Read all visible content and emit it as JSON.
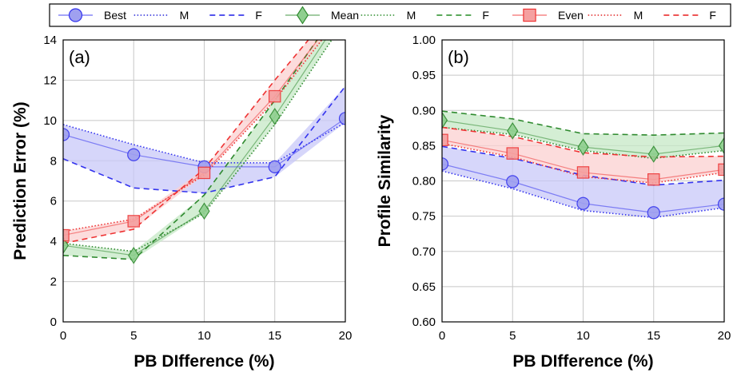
{
  "legend": [
    {
      "label": "Best",
      "kind": "marker",
      "marker": "circle",
      "color": "#3333ee",
      "fill": "#9fa0f0"
    },
    {
      "label": "M",
      "kind": "line",
      "dash": "dotted",
      "color": "#2626d9"
    },
    {
      "label": "F",
      "kind": "line",
      "dash": "dashed",
      "color": "#1a1ae6"
    },
    {
      "label": "Mean",
      "kind": "marker",
      "marker": "diamond",
      "color": "#2f8a2f",
      "fill": "#8fcf8f"
    },
    {
      "label": "M",
      "kind": "line",
      "dash": "dotted",
      "color": "#2a8c2a"
    },
    {
      "label": "F",
      "kind": "line",
      "dash": "dashed",
      "color": "#238b23"
    },
    {
      "label": "Even",
      "kind": "marker",
      "marker": "square",
      "color": "#ee3333",
      "fill": "#f5a0a0"
    },
    {
      "label": "M",
      "kind": "line",
      "dash": "dotted",
      "color": "#e02020"
    },
    {
      "label": "F",
      "kind": "line",
      "dash": "dashed",
      "color": "#e81c1c"
    }
  ],
  "colors": {
    "best": "#3333ee",
    "best_fill": "#9fa0f0",
    "best_band": "#c8c8f8",
    "mean": "#2f8a2f",
    "mean_fill": "#8fcf8f",
    "mean_band": "#c6e8c6",
    "even": "#ee3333",
    "even_fill": "#f5a0a0",
    "even_band": "#fbd0d0",
    "grid": "#c8c8c8"
  },
  "chart_data": [
    {
      "type": "line",
      "panel_label": "(a)",
      "xlabel": "PB DIfference (%)",
      "ylabel": "Prediction Error (%)",
      "x": [
        0,
        5,
        10,
        15,
        20
      ],
      "xticks": [
        "0",
        "5",
        "10",
        "15",
        "20"
      ],
      "xlim": [
        0,
        20
      ],
      "ylim": [
        0,
        14
      ],
      "yticks": [
        "0",
        "2",
        "4",
        "6",
        "8",
        "10",
        "12",
        "14"
      ],
      "grid": true,
      "series": [
        {
          "name": "Best",
          "group": "best",
          "style": "marker",
          "values": [
            9.3,
            8.3,
            7.7,
            7.7,
            10.1
          ]
        },
        {
          "name": "M",
          "group": "best",
          "style": "dotted",
          "values": [
            9.8,
            8.8,
            7.9,
            7.9,
            9.9
          ]
        },
        {
          "name": "F",
          "group": "best",
          "style": "dashed",
          "values": [
            8.1,
            6.65,
            6.4,
            7.2,
            11.7
          ]
        },
        {
          "name": "Mean",
          "group": "mean",
          "style": "marker",
          "values": [
            3.8,
            3.3,
            5.5,
            10.2,
            15.5
          ]
        },
        {
          "name": "M",
          "group": "mean",
          "style": "dotted",
          "values": [
            3.9,
            3.5,
            5.4,
            9.8,
            15.0
          ]
        },
        {
          "name": "F",
          "group": "mean",
          "style": "dashed",
          "values": [
            3.3,
            3.1,
            6.3,
            11.0,
            16.0
          ]
        },
        {
          "name": "Even",
          "group": "even",
          "style": "marker",
          "values": [
            4.3,
            5.0,
            7.4,
            11.2,
            15.8
          ]
        },
        {
          "name": "M",
          "group": "even",
          "style": "dotted",
          "values": [
            4.5,
            5.1,
            7.3,
            11.0,
            15.5
          ]
        },
        {
          "name": "F",
          "group": "even",
          "style": "dashed",
          "values": [
            3.9,
            4.6,
            7.6,
            12.0,
            16.2
          ]
        }
      ]
    },
    {
      "type": "line",
      "panel_label": "(b)",
      "xlabel": "PB DIfference (%)",
      "ylabel": "Profile Similarity",
      "x": [
        0,
        5,
        10,
        15,
        20
      ],
      "xticks": [
        "0",
        "5",
        "10",
        "15",
        "20"
      ],
      "xlim": [
        0,
        20
      ],
      "ylim": [
        0.6,
        1.0
      ],
      "yticks": [
        "0.60",
        "0.65",
        "0.70",
        "0.75",
        "0.80",
        "0.85",
        "0.90",
        "0.95",
        "1.00"
      ],
      "grid": true,
      "series": [
        {
          "name": "Best",
          "group": "best",
          "style": "marker",
          "values": [
            0.824,
            0.799,
            0.768,
            0.755,
            0.767
          ]
        },
        {
          "name": "M",
          "group": "best",
          "style": "dotted",
          "values": [
            0.814,
            0.789,
            0.758,
            0.748,
            0.762
          ]
        },
        {
          "name": "F",
          "group": "best",
          "style": "dashed",
          "values": [
            0.849,
            0.832,
            0.808,
            0.794,
            0.801
          ]
        },
        {
          "name": "Mean",
          "group": "mean",
          "style": "marker",
          "values": [
            0.886,
            0.871,
            0.848,
            0.838,
            0.85
          ]
        },
        {
          "name": "M",
          "group": "mean",
          "style": "dotted",
          "values": [
            0.876,
            0.866,
            0.843,
            0.832,
            0.843
          ]
        },
        {
          "name": "F",
          "group": "mean",
          "style": "dashed",
          "values": [
            0.899,
            0.888,
            0.867,
            0.865,
            0.868
          ]
        },
        {
          "name": "Even",
          "group": "even",
          "style": "marker",
          "values": [
            0.858,
            0.839,
            0.812,
            0.802,
            0.816
          ]
        },
        {
          "name": "M",
          "group": "even",
          "style": "dotted",
          "values": [
            0.853,
            0.834,
            0.806,
            0.797,
            0.812
          ]
        },
        {
          "name": "F",
          "group": "even",
          "style": "dashed",
          "values": [
            0.876,
            0.863,
            0.84,
            0.834,
            0.835
          ]
        }
      ]
    }
  ]
}
